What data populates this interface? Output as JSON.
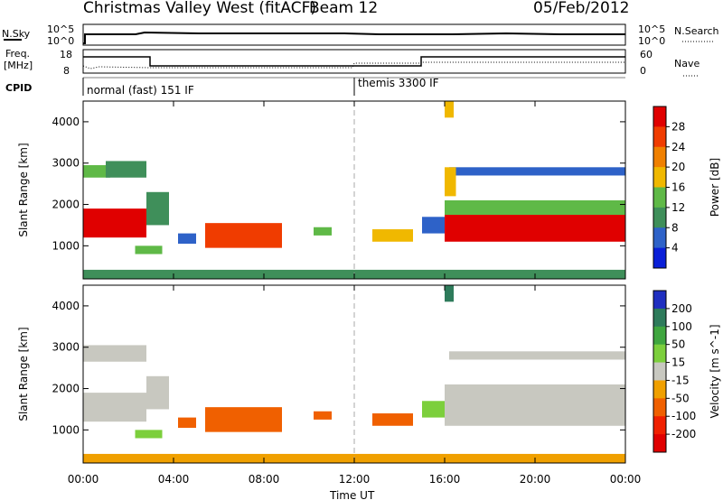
{
  "header": {
    "title": "Christmas Valley West (fitACF)",
    "beam": "Beam 12",
    "date": "05/Feb/2012"
  },
  "strip_labels": {
    "nsky": "N.Sky",
    "nsearch": "N.Search",
    "freq_line1": "Freq.",
    "freq_line2": "[MHz]",
    "nave": "Nave",
    "cpid": "CPID"
  },
  "strip_ticks": {
    "nsky_left": [
      "10^5",
      "10^0"
    ],
    "nsky_right": [
      "10^5",
      "10^0"
    ],
    "freq_left": [
      "18",
      "8"
    ],
    "nave_right": [
      "60",
      "0"
    ]
  },
  "cpid_segments": [
    {
      "label": "normal (fast) 151 IF",
      "start_hour": 0
    },
    {
      "label": "themis 3300 IF",
      "start_hour": 12
    }
  ],
  "x_axis": {
    "label": "Time UT",
    "ticks": [
      "00:00",
      "04:00",
      "08:00",
      "12:00",
      "16:00",
      "20:00",
      "00:00"
    ],
    "range_hours": [
      0,
      24
    ]
  },
  "chart_data": [
    {
      "type": "heatmap",
      "name": "power",
      "ylabel": "Slant Range [km]",
      "yticks": [
        "1000",
        "2000",
        "3000",
        "4000"
      ],
      "ylim": [
        200,
        4500
      ],
      "colorbar": {
        "label": "Power [dB]",
        "ticks": [
          "4",
          "8",
          "12",
          "16",
          "20",
          "24",
          "28"
        ],
        "colors": [
          "#0a1fd8",
          "#2e62c8",
          "#3f8f5a",
          "#5fb947",
          "#f0b800",
          "#f08000",
          "#f03c00",
          "#e00000"
        ]
      },
      "regions": [
        {
          "t0": 0.0,
          "t1": 2.8,
          "r0": 1200,
          "r1": 1900,
          "level": 28
        },
        {
          "t0": 0.0,
          "t1": 1.2,
          "r0": 2650,
          "r1": 2950,
          "level": 14
        },
        {
          "t0": 1.0,
          "t1": 2.8,
          "r0": 2650,
          "r1": 3050,
          "level": 8
        },
        {
          "t0": 2.8,
          "t1": 3.8,
          "r0": 1500,
          "r1": 2300,
          "level": 10
        },
        {
          "t0": 2.3,
          "t1": 3.5,
          "r0": 800,
          "r1": 1000,
          "level": 12
        },
        {
          "t0": 4.2,
          "t1": 5.0,
          "r0": 1050,
          "r1": 1300,
          "level": 6
        },
        {
          "t0": 5.4,
          "t1": 8.8,
          "r0": 950,
          "r1": 1550,
          "level": 24
        },
        {
          "t0": 10.2,
          "t1": 11.0,
          "r0": 1250,
          "r1": 1450,
          "level": 12
        },
        {
          "t0": 12.8,
          "t1": 14.6,
          "r0": 1100,
          "r1": 1400,
          "level": 16
        },
        {
          "t0": 15.0,
          "t1": 16.0,
          "r0": 1300,
          "r1": 1700,
          "level": 6
        },
        {
          "t0": 16.0,
          "t1": 24.0,
          "r0": 1100,
          "r1": 1750,
          "level": 28
        },
        {
          "t0": 16.0,
          "t1": 24.0,
          "r0": 1750,
          "r1": 2100,
          "level": 14
        },
        {
          "t0": 16.2,
          "t1": 24.0,
          "r0": 2700,
          "r1": 2900,
          "level": 6
        },
        {
          "t0": 16.0,
          "t1": 16.5,
          "r0": 2200,
          "r1": 2900,
          "level": 16
        },
        {
          "t0": 16.0,
          "t1": 16.4,
          "r0": 4100,
          "r1": 4500,
          "level": 16
        },
        {
          "t0": 0.0,
          "t1": 24.0,
          "r0": 200,
          "r1": 420,
          "level": 10
        }
      ]
    },
    {
      "type": "heatmap",
      "name": "velocity",
      "ylabel": "Slant Range [km]",
      "yticks": [
        "1000",
        "2000",
        "3000",
        "4000"
      ],
      "ylim": [
        200,
        4500
      ],
      "colorbar": {
        "label": "Velocity [m s^-1]",
        "ticks": [
          "200",
          "100",
          "50",
          "15",
          "-15",
          "-50",
          "-100",
          "-200"
        ],
        "colors": [
          "#1f2fc0",
          "#2e7b5b",
          "#3fa63f",
          "#7ccf3c",
          "#c8c8c0",
          "#f0a000",
          "#f06000",
          "#f02000",
          "#e00000"
        ]
      },
      "regions": [
        {
          "t0": 0.0,
          "t1": 2.8,
          "r0": 1200,
          "r1": 1900,
          "level": 0
        },
        {
          "t0": 0.0,
          "t1": 2.8,
          "r0": 2650,
          "r1": 3050,
          "level": 0
        },
        {
          "t0": 2.8,
          "t1": 3.8,
          "r0": 1500,
          "r1": 2300,
          "level": 0
        },
        {
          "t0": 2.3,
          "t1": 3.5,
          "r0": 800,
          "r1": 1000,
          "level": 30
        },
        {
          "t0": 4.2,
          "t1": 5.0,
          "r0": 1050,
          "r1": 1300,
          "level": -60
        },
        {
          "t0": 5.4,
          "t1": 8.8,
          "r0": 950,
          "r1": 1550,
          "level": -60
        },
        {
          "t0": 10.2,
          "t1": 11.0,
          "r0": 1250,
          "r1": 1450,
          "level": -60
        },
        {
          "t0": 12.8,
          "t1": 14.6,
          "r0": 1100,
          "r1": 1400,
          "level": -60
        },
        {
          "t0": 15.0,
          "t1": 16.0,
          "r0": 1300,
          "r1": 1700,
          "level": 40
        },
        {
          "t0": 16.0,
          "t1": 24.0,
          "r0": 1100,
          "r1": 2100,
          "level": 0
        },
        {
          "t0": 16.2,
          "t1": 24.0,
          "r0": 2700,
          "r1": 2900,
          "level": 0
        },
        {
          "t0": 16.0,
          "t1": 16.4,
          "r0": 4100,
          "r1": 4500,
          "level": 180
        },
        {
          "t0": 0.0,
          "t1": 24.0,
          "r0": 200,
          "r1": 420,
          "level": -30
        }
      ]
    }
  ],
  "colors": {
    "frame": "#000000",
    "dashed_line": "#aaaaaa"
  }
}
